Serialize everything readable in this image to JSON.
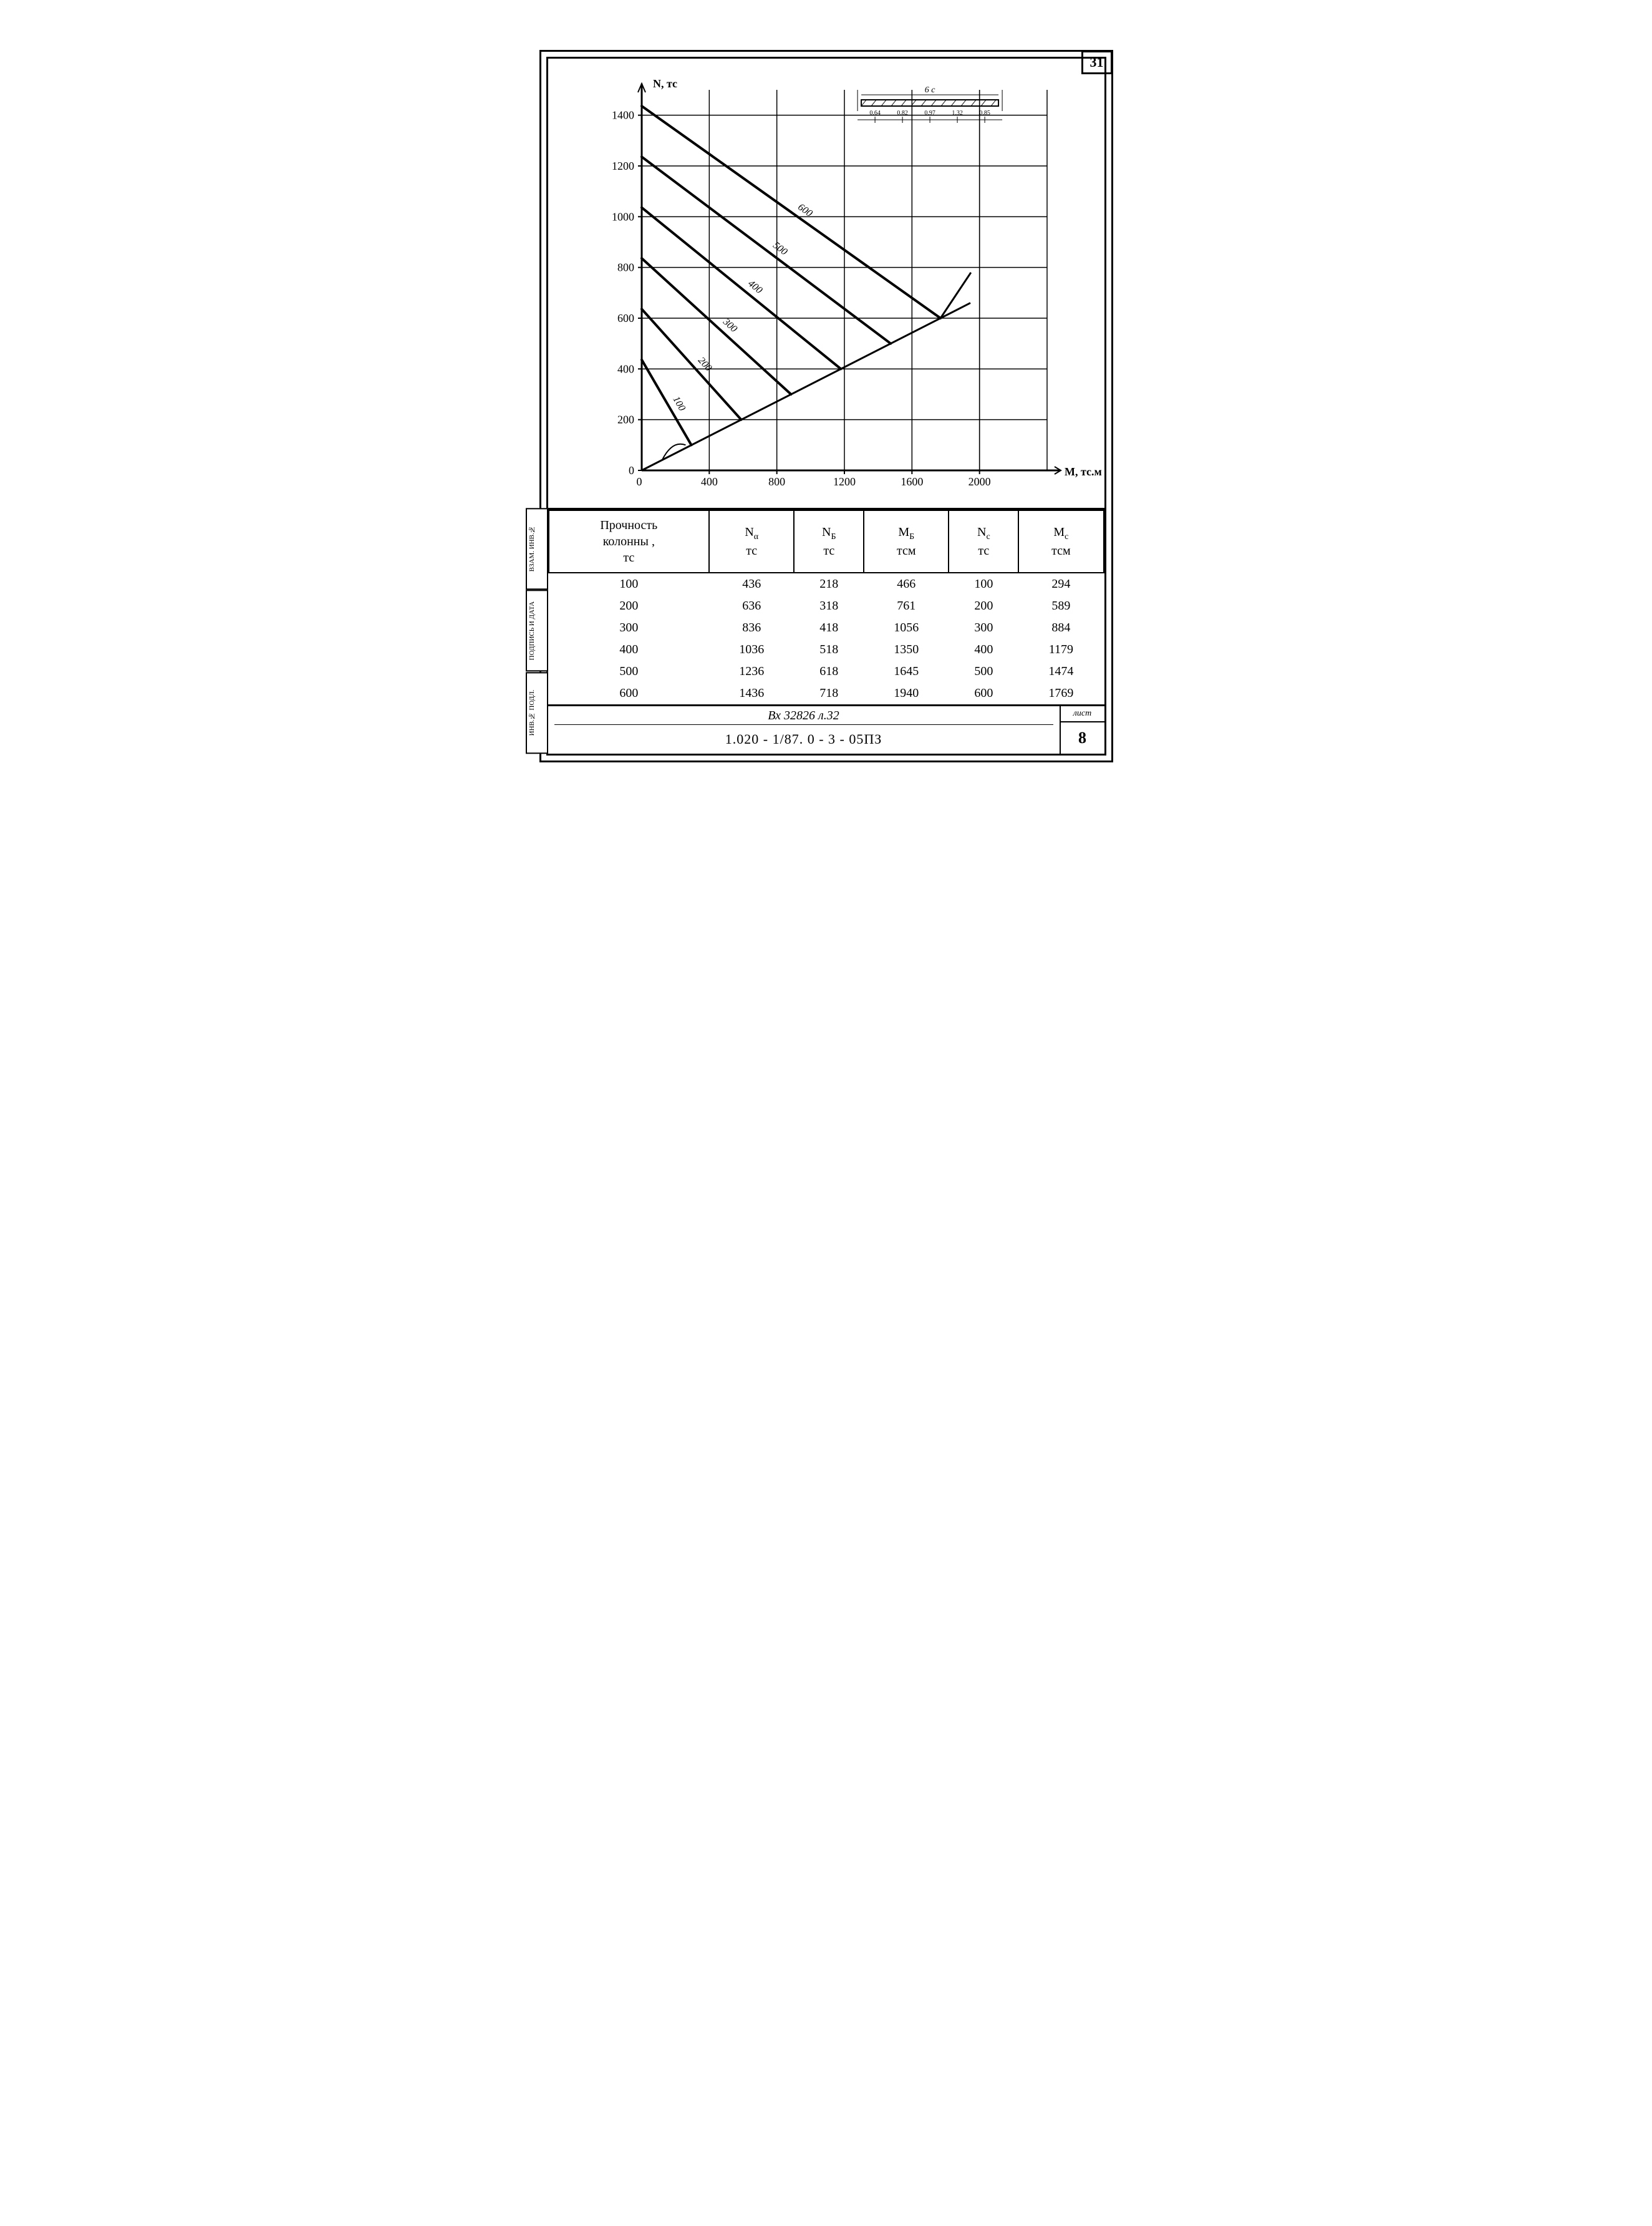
{
  "page_number_top": "31",
  "chart": {
    "type": "line",
    "y_label": "N, тс",
    "x_label": "M, тс.м",
    "y_ticks": [
      0,
      200,
      400,
      600,
      800,
      1000,
      1200,
      1400
    ],
    "x_ticks": [
      0,
      400,
      800,
      1200,
      1600,
      2000
    ],
    "ylim": [
      0,
      1500
    ],
    "xlim": [
      0,
      2400
    ],
    "line_color": "#000000",
    "line_width_main": 4,
    "line_width_ascend": 3,
    "grid_color": "#000000",
    "grid_width": 1.5,
    "background_color": "#ffffff",
    "axis_fontsize": 18,
    "curve_label_fontsize": 16,
    "curves": [
      {
        "label": "100",
        "y_start": 436,
        "vertex_x": 294,
        "vertex_y": 100
      },
      {
        "label": "200",
        "y_start": 636,
        "vertex_x": 589,
        "vertex_y": 200
      },
      {
        "label": "300",
        "y_start": 836,
        "vertex_x": 884,
        "vertex_y": 300
      },
      {
        "label": "400",
        "y_start": 1036,
        "vertex_x": 1179,
        "vertex_y": 400
      },
      {
        "label": "500",
        "y_start": 1236,
        "vertex_x": 1474,
        "vertex_y": 500
      },
      {
        "label": "600",
        "y_start": 1436,
        "vertex_x": 1769,
        "vertex_y": 600
      }
    ],
    "legend_diagram": {
      "top_label": "6 с",
      "bottom_marks": [
        "0.64",
        "0.82",
        "0.97",
        "1.32",
        "0.85"
      ]
    }
  },
  "table": {
    "headers": [
      {
        "line1": "Прочность",
        "line2": "колонны ,",
        "line3": "тс"
      },
      {
        "line1": "N",
        "sub": "α",
        "line3": "тс"
      },
      {
        "line1": "N",
        "sub": "Б",
        "line3": "тс"
      },
      {
        "line1": "M",
        "sub": "Б",
        "line3": "тсм"
      },
      {
        "line1": "N",
        "sub": "с",
        "line3": "тс"
      },
      {
        "line1": "M",
        "sub": "с",
        "line3": "тсм"
      }
    ],
    "rows": [
      [
        "100",
        "436",
        "218",
        "466",
        "100",
        "294"
      ],
      [
        "200",
        "636",
        "318",
        "761",
        "200",
        "589"
      ],
      [
        "300",
        "836",
        "418",
        "1056",
        "300",
        "884"
      ],
      [
        "400",
        "1036",
        "518",
        "1350",
        "400",
        "1179"
      ],
      [
        "500",
        "1236",
        "618",
        "1645",
        "500",
        "1474"
      ],
      [
        "600",
        "1436",
        "718",
        "1940",
        "600",
        "1769"
      ]
    ]
  },
  "side_labels": [
    "ВЗАМ. ИНВ.№",
    "ПОДПИСЬ И ДАТА",
    "ИНВ.№ ПОДЛ."
  ],
  "title_block": {
    "handwritten": "Вх 32826 л.32",
    "doc_number": "1.020 - 1/87. 0 - 3 - 05ПЗ",
    "sheet_label": "лист",
    "sheet_number": "8"
  }
}
